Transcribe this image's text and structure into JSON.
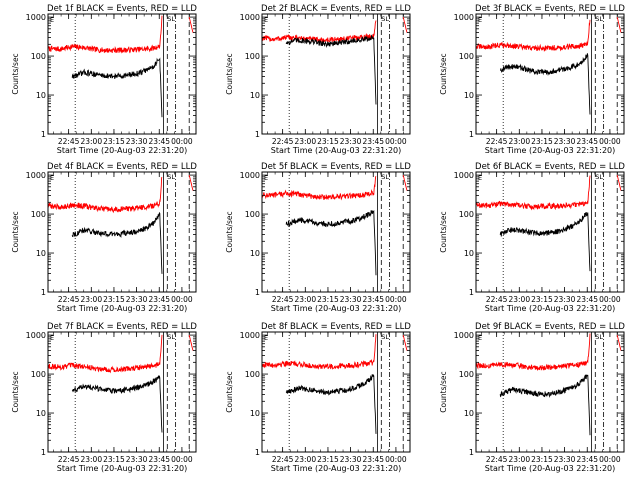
{
  "figure": {
    "xlabel": "Start Time (20-Aug-03 22:31:20)",
    "ylabel": "Counts/sec",
    "x_tick_labels": [
      "22:45",
      "23:00",
      "23:15",
      "23:30",
      "23:45",
      "00:00"
    ],
    "y_tick_labels": [
      "1",
      "10",
      "100",
      "1000"
    ],
    "flag_label": "SL",
    "colors": {
      "events": "#000000",
      "lld": "#ff0000"
    }
  },
  "chart_data": [
    {
      "type": "line",
      "title": "Det 1f BLACK = Events, RED = LLD",
      "x_unit": "minutes after 22:31:20",
      "xlim": [
        0,
        98
      ],
      "ylim": [
        1,
        1200
      ],
      "y_scale": "log",
      "x_ticks": [
        13.67,
        28.67,
        43.67,
        58.67,
        73.67,
        88.67
      ],
      "y_ticks": [
        1,
        10,
        100,
        1000
      ],
      "vlines": [
        {
          "x": 18,
          "style": "dotted"
        },
        {
          "x": 76.5,
          "style": "solid"
        },
        {
          "x": 79,
          "style": "dashed"
        },
        {
          "x": 84.5,
          "style": "dash-dot"
        },
        {
          "x": 93.5,
          "style": "dashed"
        }
      ],
      "series": [
        {
          "color": "red",
          "x": [
            0,
            8,
            16,
            24,
            32,
            40,
            48,
            56,
            64,
            70,
            74,
            75.5,
            93.5,
            96
          ],
          "y": [
            155,
            150,
            175,
            165,
            145,
            140,
            142,
            145,
            150,
            160,
            180,
            950,
            1000,
            400
          ]
        },
        {
          "color": "black",
          "x": [
            16,
            20,
            24,
            30,
            36,
            42,
            48,
            54,
            60,
            66,
            70,
            74,
            75.5
          ],
          "y": [
            30,
            33,
            38,
            35,
            32,
            30,
            31,
            33,
            36,
            45,
            55,
            85,
            3
          ]
        }
      ]
    },
    {
      "type": "line",
      "title": "Det 2f BLACK = Events, RED = LLD",
      "x_unit": "minutes after 22:31:20",
      "xlim": [
        0,
        98
      ],
      "ylim": [
        1,
        1200
      ],
      "y_scale": "log",
      "x_ticks": [
        13.67,
        28.67,
        43.67,
        58.67,
        73.67,
        88.67
      ],
      "y_ticks": [
        1,
        10,
        100,
        1000
      ],
      "vlines": [
        {
          "x": 18,
          "style": "dotted"
        },
        {
          "x": 76.5,
          "style": "solid"
        },
        {
          "x": 79,
          "style": "dashed"
        },
        {
          "x": 84.5,
          "style": "dash-dot"
        },
        {
          "x": 93.5,
          "style": "dashed"
        }
      ],
      "series": [
        {
          "color": "red",
          "x": [
            0,
            8,
            16,
            24,
            32,
            40,
            48,
            56,
            64,
            70,
            74,
            75.5,
            93.5,
            96
          ],
          "y": [
            290,
            270,
            300,
            290,
            270,
            255,
            265,
            280,
            300,
            310,
            330,
            950,
            1000,
            400
          ]
        },
        {
          "color": "black",
          "x": [
            16,
            20,
            24,
            30,
            36,
            42,
            48,
            54,
            60,
            66,
            70,
            74,
            75.5
          ],
          "y": [
            220,
            240,
            255,
            245,
            225,
            205,
            210,
            225,
            245,
            260,
            275,
            300,
            5
          ]
        }
      ]
    },
    {
      "type": "line",
      "title": "Det 3f BLACK = Events, RED = LLD",
      "x_unit": "minutes after 22:31:20",
      "xlim": [
        0,
        98
      ],
      "ylim": [
        1,
        1200
      ],
      "y_scale": "log",
      "x_ticks": [
        13.67,
        28.67,
        43.67,
        58.67,
        73.67,
        88.67
      ],
      "y_ticks": [
        1,
        10,
        100,
        1000
      ],
      "vlines": [
        {
          "x": 18,
          "style": "dotted"
        },
        {
          "x": 76.5,
          "style": "solid"
        },
        {
          "x": 79,
          "style": "dashed"
        },
        {
          "x": 84.5,
          "style": "dash-dot"
        },
        {
          "x": 93.5,
          "style": "dashed"
        }
      ],
      "series": [
        {
          "color": "red",
          "x": [
            0,
            8,
            16,
            24,
            32,
            40,
            48,
            56,
            64,
            70,
            74,
            75.5,
            93.5,
            96
          ],
          "y": [
            175,
            170,
            195,
            185,
            165,
            160,
            162,
            165,
            175,
            185,
            205,
            950,
            1000,
            400
          ]
        },
        {
          "color": "black",
          "x": [
            16,
            20,
            24,
            30,
            36,
            42,
            48,
            54,
            60,
            66,
            70,
            74,
            75.5
          ],
          "y": [
            45,
            50,
            55,
            50,
            42,
            38,
            40,
            43,
            48,
            58,
            72,
            105,
            3
          ]
        }
      ]
    },
    {
      "type": "line",
      "title": "Det 4f BLACK = Events, RED = LLD",
      "x_unit": "minutes after 22:31:20",
      "xlim": [
        0,
        98
      ],
      "ylim": [
        1,
        1200
      ],
      "y_scale": "log",
      "x_ticks": [
        13.67,
        28.67,
        43.67,
        58.67,
        73.67,
        88.67
      ],
      "y_ticks": [
        1,
        10,
        100,
        1000
      ],
      "vlines": [
        {
          "x": 18,
          "style": "dotted"
        },
        {
          "x": 76.5,
          "style": "solid"
        },
        {
          "x": 79,
          "style": "dashed"
        },
        {
          "x": 84.5,
          "style": "dash-dot"
        },
        {
          "x": 93.5,
          "style": "dashed"
        }
      ],
      "series": [
        {
          "color": "red",
          "x": [
            0,
            8,
            16,
            24,
            32,
            40,
            48,
            56,
            64,
            70,
            74,
            75.5,
            93.5,
            96
          ],
          "y": [
            165,
            150,
            170,
            160,
            140,
            130,
            133,
            140,
            150,
            165,
            190,
            950,
            1000,
            400
          ]
        },
        {
          "color": "black",
          "x": [
            16,
            20,
            24,
            30,
            36,
            42,
            48,
            54,
            60,
            66,
            70,
            74,
            75.5
          ],
          "y": [
            30,
            33,
            38,
            35,
            32,
            30,
            31,
            33,
            36,
            45,
            60,
            105,
            3
          ]
        }
      ]
    },
    {
      "type": "line",
      "title": "Det 5f BLACK = Events, RED = LLD",
      "x_unit": "minutes after 22:31:20",
      "xlim": [
        0,
        98
      ],
      "ylim": [
        1,
        1200
      ],
      "y_scale": "log",
      "x_ticks": [
        13.67,
        28.67,
        43.67,
        58.67,
        73.67,
        88.67
      ],
      "y_ticks": [
        1,
        10,
        100,
        1000
      ],
      "vlines": [
        {
          "x": 18,
          "style": "dotted"
        },
        {
          "x": 76.5,
          "style": "solid"
        },
        {
          "x": 79,
          "style": "dashed"
        },
        {
          "x": 84.5,
          "style": "dash-dot"
        },
        {
          "x": 93.5,
          "style": "dashed"
        }
      ],
      "series": [
        {
          "color": "red",
          "x": [
            0,
            8,
            16,
            24,
            32,
            40,
            48,
            56,
            64,
            70,
            74,
            75.5,
            93.5,
            96
          ],
          "y": [
            310,
            300,
            340,
            320,
            290,
            270,
            275,
            285,
            300,
            320,
            350,
            950,
            1000,
            400
          ]
        },
        {
          "color": "black",
          "x": [
            16,
            20,
            24,
            30,
            36,
            42,
            48,
            54,
            60,
            66,
            70,
            74,
            75.5
          ],
          "y": [
            55,
            60,
            70,
            65,
            60,
            55,
            57,
            62,
            68,
            80,
            95,
            120,
            3
          ]
        }
      ]
    },
    {
      "type": "line",
      "title": "Det 6f BLACK = Events, RED = LLD",
      "x_unit": "minutes after 22:31:20",
      "xlim": [
        0,
        98
      ],
      "ylim": [
        1,
        1200
      ],
      "y_scale": "log",
      "x_ticks": [
        13.67,
        28.67,
        43.67,
        58.67,
        73.67,
        88.67
      ],
      "y_ticks": [
        1,
        10,
        100,
        1000
      ],
      "vlines": [
        {
          "x": 18,
          "style": "dotted"
        },
        {
          "x": 76.5,
          "style": "solid"
        },
        {
          "x": 79,
          "style": "dashed"
        },
        {
          "x": 84.5,
          "style": "dash-dot"
        },
        {
          "x": 93.5,
          "style": "dashed"
        }
      ],
      "series": [
        {
          "color": "red",
          "x": [
            0,
            8,
            16,
            24,
            32,
            40,
            48,
            56,
            64,
            70,
            74,
            75.5,
            93.5,
            96
          ],
          "y": [
            170,
            165,
            185,
            175,
            160,
            155,
            158,
            162,
            170,
            180,
            200,
            950,
            1000,
            400
          ]
        },
        {
          "color": "black",
          "x": [
            16,
            20,
            24,
            30,
            36,
            42,
            48,
            54,
            60,
            66,
            70,
            74,
            75.5
          ],
          "y": [
            30,
            35,
            40,
            37,
            34,
            32,
            33,
            36,
            42,
            55,
            75,
            110,
            3
          ]
        }
      ]
    },
    {
      "type": "line",
      "title": "Det 7f BLACK = Events, RED = LLD",
      "x_unit": "minutes after 22:31:20",
      "xlim": [
        0,
        98
      ],
      "ylim": [
        1,
        1200
      ],
      "y_scale": "log",
      "x_ticks": [
        13.67,
        28.67,
        43.67,
        58.67,
        73.67,
        88.67
      ],
      "y_ticks": [
        1,
        10,
        100,
        1000
      ],
      "vlines": [
        {
          "x": 18,
          "style": "dotted"
        },
        {
          "x": 76.5,
          "style": "solid"
        },
        {
          "x": 79,
          "style": "dashed"
        },
        {
          "x": 84.5,
          "style": "dash-dot"
        },
        {
          "x": 93.5,
          "style": "dashed"
        }
      ],
      "series": [
        {
          "color": "red",
          "x": [
            0,
            8,
            16,
            24,
            32,
            40,
            48,
            56,
            64,
            70,
            74,
            75.5,
            93.5,
            96
          ],
          "y": [
            160,
            150,
            165,
            155,
            140,
            130,
            132,
            140,
            150,
            160,
            180,
            950,
            1000,
            400
          ]
        },
        {
          "color": "black",
          "x": [
            16,
            20,
            24,
            30,
            36,
            42,
            48,
            54,
            60,
            66,
            70,
            74,
            75.5
          ],
          "y": [
            38,
            42,
            48,
            45,
            40,
            37,
            38,
            41,
            45,
            55,
            65,
            80,
            3
          ]
        }
      ]
    },
    {
      "type": "line",
      "title": "Det 8f BLACK = Events, RED = LLD",
      "x_unit": "minutes after 22:31:20",
      "xlim": [
        0,
        98
      ],
      "ylim": [
        1,
        1200
      ],
      "y_scale": "log",
      "x_ticks": [
        13.67,
        28.67,
        43.67,
        58.67,
        73.67,
        88.67
      ],
      "y_ticks": [
        1,
        10,
        100,
        1000
      ],
      "vlines": [
        {
          "x": 18,
          "style": "dotted"
        },
        {
          "x": 76.5,
          "style": "solid"
        },
        {
          "x": 79,
          "style": "dashed"
        },
        {
          "x": 84.5,
          "style": "dash-dot"
        },
        {
          "x": 93.5,
          "style": "dashed"
        }
      ],
      "series": [
        {
          "color": "red",
          "x": [
            0,
            8,
            16,
            24,
            32,
            40,
            48,
            56,
            64,
            70,
            74,
            75.5,
            93.5,
            96
          ],
          "y": [
            175,
            170,
            190,
            180,
            165,
            155,
            158,
            165,
            175,
            185,
            200,
            950,
            1000,
            400
          ]
        },
        {
          "color": "black",
          "x": [
            16,
            20,
            24,
            30,
            36,
            42,
            48,
            54,
            60,
            66,
            70,
            74,
            75.5
          ],
          "y": [
            35,
            38,
            44,
            41,
            37,
            34,
            35,
            38,
            43,
            52,
            65,
            90,
            3
          ]
        }
      ]
    },
    {
      "type": "line",
      "title": "Det 9f BLACK = Events, RED = LLD",
      "x_unit": "minutes after 22:31:20",
      "xlim": [
        0,
        98
      ],
      "ylim": [
        1,
        1200
      ],
      "y_scale": "log",
      "x_ticks": [
        13.67,
        28.67,
        43.67,
        58.67,
        73.67,
        88.67
      ],
      "y_ticks": [
        1,
        10,
        100,
        1000
      ],
      "vlines": [
        {
          "x": 18,
          "style": "dotted"
        },
        {
          "x": 76.5,
          "style": "solid"
        },
        {
          "x": 79,
          "style": "dashed"
        },
        {
          "x": 84.5,
          "style": "dash-dot"
        },
        {
          "x": 93.5,
          "style": "dashed"
        }
      ],
      "series": [
        {
          "color": "red",
          "x": [
            0,
            8,
            16,
            24,
            32,
            40,
            48,
            56,
            64,
            70,
            74,
            75.5,
            93.5,
            96
          ],
          "y": [
            165,
            160,
            180,
            170,
            155,
            145,
            148,
            155,
            165,
            178,
            195,
            950,
            1000,
            400
          ]
        },
        {
          "color": "black",
          "x": [
            16,
            20,
            24,
            30,
            36,
            42,
            48,
            54,
            60,
            66,
            70,
            74,
            75.5
          ],
          "y": [
            30,
            34,
            40,
            37,
            33,
            30,
            31,
            34,
            40,
            50,
            65,
            95,
            3
          ]
        }
      ]
    }
  ]
}
